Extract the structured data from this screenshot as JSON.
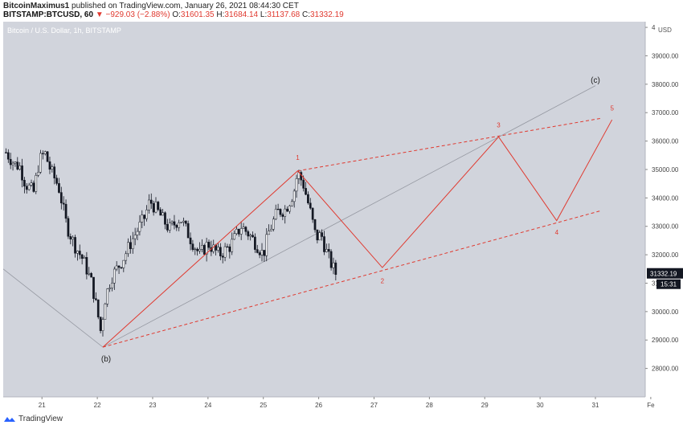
{
  "header": {
    "author": "BitcoinMaximus1",
    "published_text": "published on TradingView.com, January 26, 2021 08:44:30 CET",
    "symbol": "BITSTAMP:BTCUSD, 60",
    "change": "▼ −929.03 (−2.88%)",
    "open_label": "O:",
    "open_value": "31601.35",
    "high_label": "H:",
    "high_value": "31684.14",
    "low_label": "L:",
    "low_value": "31137.68",
    "close_label": "C:",
    "close_value": "31332.19"
  },
  "footer": {
    "brand": "TradingView"
  },
  "colors": {
    "plot_bg": "#d1d4dc",
    "candle": "#131722",
    "wave_red": "#e0392f",
    "trend_gray": "#9598a1"
  },
  "chart_data": {
    "type": "candlestick",
    "title": "Bitcoin / U.S. Dollar, 1h, BITSTAMP",
    "currency": "USD",
    "x_axis": {
      "ticks": [
        "21",
        "22",
        "23",
        "24",
        "25",
        "26",
        "27",
        "28",
        "29",
        "30",
        "31",
        "Fe"
      ],
      "range": [
        20.3,
        31.9
      ]
    },
    "y_axis": {
      "ticks": [
        28000,
        29000,
        30000,
        31000,
        32000,
        33000,
        34000,
        35000,
        36000,
        37000,
        38000,
        39000,
        40000
      ],
      "range": [
        27000,
        40200
      ]
    },
    "last_price": {
      "value": "31332.19",
      "countdown": "15:31"
    },
    "candle_path": [
      [
        20.35,
        35600
      ],
      [
        20.5,
        35200
      ],
      [
        20.6,
        35100
      ],
      [
        20.7,
        34500
      ],
      [
        20.85,
        34200
      ],
      [
        20.95,
        35300
      ],
      [
        21.05,
        35600
      ],
      [
        21.15,
        35000
      ],
      [
        21.3,
        34400
      ],
      [
        21.45,
        33000
      ],
      [
        21.6,
        32300
      ],
      [
        21.75,
        31800
      ],
      [
        21.9,
        31000
      ],
      [
        22.0,
        30000
      ],
      [
        22.07,
        29200
      ],
      [
        22.12,
        30300
      ],
      [
        22.25,
        31200
      ],
      [
        22.45,
        31800
      ],
      [
        22.65,
        32600
      ],
      [
        22.85,
        33300
      ],
      [
        22.95,
        33900
      ],
      [
        23.1,
        33500
      ],
      [
        23.3,
        32900
      ],
      [
        23.5,
        33300
      ],
      [
        23.7,
        32500
      ],
      [
        23.85,
        32000
      ],
      [
        24.0,
        32400
      ],
      [
        24.2,
        32000
      ],
      [
        24.4,
        32300
      ],
      [
        24.6,
        33000
      ],
      [
        24.75,
        32700
      ],
      [
        24.9,
        32300
      ],
      [
        25.0,
        32000
      ],
      [
        25.1,
        32800
      ],
      [
        25.25,
        33500
      ],
      [
        25.4,
        33600
      ],
      [
        25.55,
        34200
      ],
      [
        25.62,
        34900
      ],
      [
        25.72,
        34500
      ],
      [
        25.85,
        33500
      ],
      [
        25.95,
        32600
      ],
      [
        26.05,
        32700
      ],
      [
        26.12,
        32200
      ],
      [
        26.22,
        31700
      ],
      [
        26.32,
        31300
      ]
    ],
    "wave_labels": [
      {
        "label": "1",
        "x": 25.62,
        "y": 35000
      },
      {
        "label": "2",
        "x": 27.15,
        "y": 31400
      },
      {
        "label": "3",
        "x": 29.25,
        "y": 36200
      },
      {
        "label": "4",
        "x": 30.3,
        "y": 33100
      },
      {
        "label": "5",
        "x": 31.3,
        "y": 36800
      },
      {
        "label": "(b)",
        "x": 22.1,
        "y": 28750
      },
      {
        "label": "(c)",
        "x": 31.0,
        "y": 38000
      }
    ],
    "wave_path": [
      [
        22.1,
        28750
      ],
      [
        25.62,
        34950
      ],
      [
        27.15,
        31550
      ],
      [
        29.25,
        36150
      ],
      [
        30.3,
        33200
      ],
      [
        31.3,
        36750
      ]
    ],
    "gray_line": [
      [
        20.3,
        31500
      ],
      [
        22.1,
        28750
      ],
      [
        31.0,
        37950
      ]
    ],
    "channel_upper": [
      [
        25.62,
        34950
      ],
      [
        31.1,
        36800
      ]
    ],
    "channel_lower": [
      [
        22.1,
        28750
      ],
      [
        31.1,
        33550
      ]
    ]
  }
}
